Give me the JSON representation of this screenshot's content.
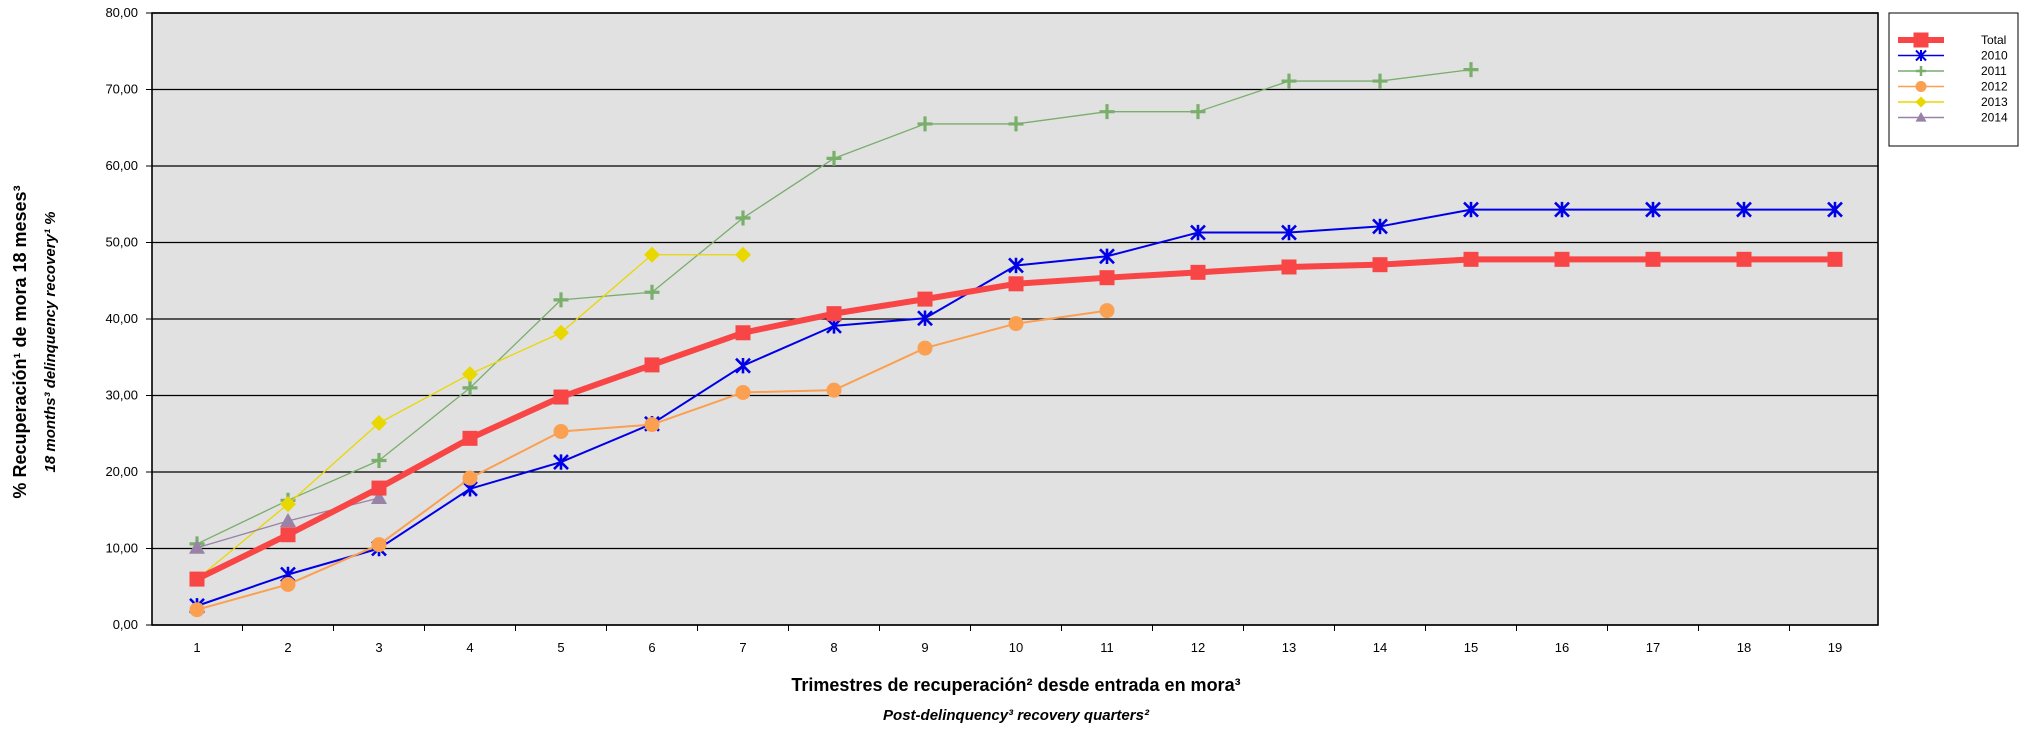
{
  "chart_data": {
    "type": "line",
    "xlabel": "Trimestres de recuperación² desde entrada en mora³",
    "xlabel_sub": "Post-delinquency³ recovery quarters²",
    "ylabel": "% Recuperación¹ de mora 18 meses³",
    "ylabel_sub": "18 months³ delinquency recovery¹ %",
    "ylim": [
      0,
      80
    ],
    "y_ticks": [
      "0,00",
      "10,00",
      "20,00",
      "30,00",
      "40,00",
      "50,00",
      "60,00",
      "70,00",
      "80,00"
    ],
    "x": [
      "1",
      "2",
      "3",
      "4",
      "5",
      "6",
      "7",
      "8",
      "9",
      "10",
      "11",
      "12",
      "13",
      "14",
      "15",
      "16",
      "17",
      "18",
      "19"
    ],
    "grid": "horizontal",
    "legend_position": "top-right",
    "background_color": "#e1e1e1",
    "series": [
      {
        "name": "Total",
        "color": "#f84545",
        "marker": "square",
        "values": [
          6.0,
          11.8,
          17.9,
          24.4,
          29.8,
          34.0,
          38.2,
          40.7,
          42.6,
          44.6,
          45.4,
          46.1,
          46.8,
          47.1,
          47.8,
          47.8,
          47.8,
          47.8,
          47.8
        ]
      },
      {
        "name": "2010",
        "color": "#0000e8",
        "marker": "star",
        "values": [
          2.5,
          6.6,
          10.0,
          17.8,
          21.3,
          26.3,
          33.9,
          39.1,
          40.1,
          47.0,
          48.2,
          51.3,
          51.3,
          52.1,
          54.3,
          54.3,
          54.3,
          54.3,
          54.3
        ]
      },
      {
        "name": "2011",
        "color": "#79ae6b",
        "marker": "cross",
        "values": [
          10.6,
          16.3,
          21.5,
          31.0,
          42.5,
          43.5,
          53.2,
          61.0,
          65.5,
          65.5,
          67.1,
          67.1,
          71.1,
          71.1,
          72.6,
          null,
          null,
          null,
          null
        ]
      },
      {
        "name": "2012",
        "color": "#fb9f50",
        "marker": "circle",
        "values": [
          2.0,
          5.3,
          10.5,
          19.2,
          25.3,
          26.2,
          30.4,
          30.7,
          36.2,
          39.4,
          41.1,
          null,
          null,
          null,
          null,
          null,
          null,
          null,
          null
        ]
      },
      {
        "name": "2013",
        "color": "#e9d700",
        "marker": "diamond",
        "values": [
          6.0,
          15.8,
          26.4,
          32.8,
          38.2,
          48.4,
          48.4,
          null,
          null,
          null,
          null,
          null,
          null,
          null,
          null,
          null,
          null,
          null,
          null
        ]
      },
      {
        "name": "2014",
        "color": "#9882a8",
        "marker": "triangle",
        "values": [
          10.1,
          13.6,
          16.6,
          null,
          null,
          null,
          null,
          null,
          null,
          null,
          null,
          null,
          null,
          null,
          null,
          null,
          null,
          null,
          null
        ]
      }
    ]
  }
}
